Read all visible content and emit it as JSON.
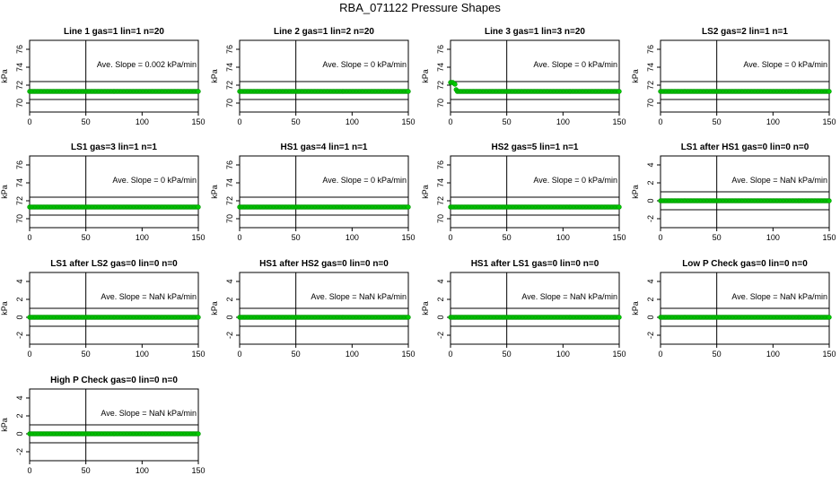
{
  "figure_title": "RBA_071122  Pressure Shapes",
  "chart_data": [
    {
      "type": "scatter",
      "title": "Line 1 gas=1 lin=1 n=20",
      "ylabel": "kPa",
      "xlim": [
        0,
        150
      ],
      "ylim": [
        69,
        77
      ],
      "xticks": [
        0,
        50,
        100,
        150
      ],
      "yticks": [
        70,
        72,
        74,
        76
      ],
      "vline": 50,
      "hlines": [
        70.4,
        72.4
      ],
      "annotation": "Ave. Slope =  0.002  kPa/min",
      "marker_color": "#00cc00",
      "series": [
        {
          "points": [
            [
              0,
              71.3
            ],
            [
              150,
              71.3
            ]
          ]
        }
      ]
    },
    {
      "type": "scatter",
      "title": "Line 2 gas=1 lin=2 n=20",
      "ylabel": "kPa",
      "xlim": [
        0,
        150
      ],
      "ylim": [
        69,
        77
      ],
      "xticks": [
        0,
        50,
        100,
        150
      ],
      "yticks": [
        70,
        72,
        74,
        76
      ],
      "vline": 50,
      "hlines": [
        70.4,
        72.4
      ],
      "annotation": "Ave. Slope =  0  kPa/min",
      "marker_color": "#00cc00",
      "series": [
        {
          "points": [
            [
              0,
              71.3
            ],
            [
              150,
              71.3
            ]
          ]
        }
      ]
    },
    {
      "type": "scatter",
      "title": "Line 3 gas=1 lin=3 n=20",
      "ylabel": "kPa",
      "xlim": [
        0,
        150
      ],
      "ylim": [
        69,
        77
      ],
      "xticks": [
        0,
        50,
        100,
        150
      ],
      "yticks": [
        70,
        72,
        74,
        76
      ],
      "vline": 50,
      "hlines": [
        70.4,
        72.4
      ],
      "annotation": "Ave. Slope =  0  kPa/min",
      "marker_color": "#00cc00",
      "series": [
        {
          "points": [
            [
              0,
              72.3
            ],
            [
              2,
              72.3
            ],
            [
              4,
              72.1
            ],
            [
              5,
              71.5
            ],
            [
              6,
              71.3
            ],
            [
              150,
              71.3
            ]
          ]
        }
      ]
    },
    {
      "type": "scatter",
      "title": "LS2 gas=2 lin=1 n=1",
      "ylabel": "kPa",
      "xlim": [
        0,
        150
      ],
      "ylim": [
        69,
        77
      ],
      "xticks": [
        0,
        50,
        100,
        150
      ],
      "yticks": [
        70,
        72,
        74,
        76
      ],
      "vline": 50,
      "hlines": [
        70.4,
        72.4
      ],
      "annotation": "Ave. Slope =  0  kPa/min",
      "marker_color": "#00cc00",
      "series": [
        {
          "points": [
            [
              0,
              71.3
            ],
            [
              150,
              71.3
            ]
          ]
        }
      ]
    },
    {
      "type": "scatter",
      "title": "LS1 gas=3 lin=1 n=1",
      "ylabel": "kPa",
      "xlim": [
        0,
        150
      ],
      "ylim": [
        69,
        77
      ],
      "xticks": [
        0,
        50,
        100,
        150
      ],
      "yticks": [
        70,
        72,
        74,
        76
      ],
      "vline": 50,
      "hlines": [
        70.4,
        72.4
      ],
      "annotation": "Ave. Slope =  0  kPa/min",
      "marker_color": "#00cc00",
      "series": [
        {
          "points": [
            [
              0,
              71.3
            ],
            [
              150,
              71.3
            ]
          ]
        }
      ]
    },
    {
      "type": "scatter",
      "title": "HS1 gas=4 lin=1 n=1",
      "ylabel": "kPa",
      "xlim": [
        0,
        150
      ],
      "ylim": [
        69,
        77
      ],
      "xticks": [
        0,
        50,
        100,
        150
      ],
      "yticks": [
        70,
        72,
        74,
        76
      ],
      "vline": 50,
      "hlines": [
        70.4,
        72.4
      ],
      "annotation": "Ave. Slope =  0  kPa/min",
      "marker_color": "#00cc00",
      "series": [
        {
          "points": [
            [
              0,
              71.3
            ],
            [
              150,
              71.3
            ]
          ]
        }
      ]
    },
    {
      "type": "scatter",
      "title": "HS2 gas=5 lin=1 n=1",
      "ylabel": "kPa",
      "xlim": [
        0,
        150
      ],
      "ylim": [
        69,
        77
      ],
      "xticks": [
        0,
        50,
        100,
        150
      ],
      "yticks": [
        70,
        72,
        74,
        76
      ],
      "vline": 50,
      "hlines": [
        70.4,
        72.4
      ],
      "annotation": "Ave. Slope =  0  kPa/min",
      "marker_color": "#00cc00",
      "series": [
        {
          "points": [
            [
              0,
              71.3
            ],
            [
              150,
              71.3
            ]
          ]
        }
      ]
    },
    {
      "type": "scatter",
      "title": "LS1 after HS1 gas=0 lin=0 n=0",
      "ylabel": "kPa",
      "xlim": [
        0,
        150
      ],
      "ylim": [
        -3,
        5
      ],
      "xticks": [
        0,
        50,
        100,
        150
      ],
      "yticks": [
        -2,
        0,
        2,
        4
      ],
      "vline": 50,
      "hlines": [
        -1,
        1
      ],
      "annotation": "Ave. Slope =  NaN  kPa/min",
      "marker_color": "#00cc00",
      "series": [
        {
          "points": [
            [
              0,
              0
            ],
            [
              150,
              0
            ]
          ]
        }
      ]
    },
    {
      "type": "scatter",
      "title": "LS1 after LS2 gas=0 lin=0 n=0",
      "ylabel": "kPa",
      "xlim": [
        0,
        150
      ],
      "ylim": [
        -3,
        5
      ],
      "xticks": [
        0,
        50,
        100,
        150
      ],
      "yticks": [
        -2,
        0,
        2,
        4
      ],
      "vline": 50,
      "hlines": [
        -1,
        1
      ],
      "annotation": "Ave. Slope =  NaN  kPa/min",
      "marker_color": "#00cc00",
      "series": [
        {
          "points": [
            [
              0,
              0
            ],
            [
              150,
              0
            ]
          ]
        }
      ]
    },
    {
      "type": "scatter",
      "title": "HS1 after HS2 gas=0 lin=0 n=0",
      "ylabel": "kPa",
      "xlim": [
        0,
        150
      ],
      "ylim": [
        -3,
        5
      ],
      "xticks": [
        0,
        50,
        100,
        150
      ],
      "yticks": [
        -2,
        0,
        2,
        4
      ],
      "vline": 50,
      "hlines": [
        -1,
        1
      ],
      "annotation": "Ave. Slope =  NaN  kPa/min",
      "marker_color": "#00cc00",
      "series": [
        {
          "points": [
            [
              0,
              0
            ],
            [
              150,
              0
            ]
          ]
        }
      ]
    },
    {
      "type": "scatter",
      "title": "HS1 after LS1 gas=0 lin=0 n=0",
      "ylabel": "kPa",
      "xlim": [
        0,
        150
      ],
      "ylim": [
        -3,
        5
      ],
      "xticks": [
        0,
        50,
        100,
        150
      ],
      "yticks": [
        -2,
        0,
        2,
        4
      ],
      "vline": 50,
      "hlines": [
        -1,
        1
      ],
      "annotation": "Ave. Slope =  NaN  kPa/min",
      "marker_color": "#00cc00",
      "series": [
        {
          "points": [
            [
              0,
              0
            ],
            [
              150,
              0
            ]
          ]
        }
      ]
    },
    {
      "type": "scatter",
      "title": "Low P Check gas=0 lin=0 n=0",
      "ylabel": "kPa",
      "xlim": [
        0,
        150
      ],
      "ylim": [
        -3,
        5
      ],
      "xticks": [
        0,
        50,
        100,
        150
      ],
      "yticks": [
        -2,
        0,
        2,
        4
      ],
      "vline": 50,
      "hlines": [
        -1,
        1
      ],
      "annotation": "Ave. Slope =  NaN  kPa/min",
      "marker_color": "#00cc00",
      "series": [
        {
          "points": [
            [
              0,
              0
            ],
            [
              150,
              0
            ]
          ]
        }
      ]
    },
    {
      "type": "scatter",
      "title": "High P Check gas=0 lin=0 n=0",
      "ylabel": "kPa",
      "xlim": [
        0,
        150
      ],
      "ylim": [
        -3,
        5
      ],
      "xticks": [
        0,
        50,
        100,
        150
      ],
      "yticks": [
        -2,
        0,
        2,
        4
      ],
      "vline": 50,
      "hlines": [
        -1,
        1
      ],
      "annotation": "Ave. Slope =  NaN  kPa/min",
      "marker_color": "#00cc00",
      "series": [
        {
          "points": [
            [
              0,
              0
            ],
            [
              150,
              0
            ]
          ]
        }
      ]
    }
  ]
}
